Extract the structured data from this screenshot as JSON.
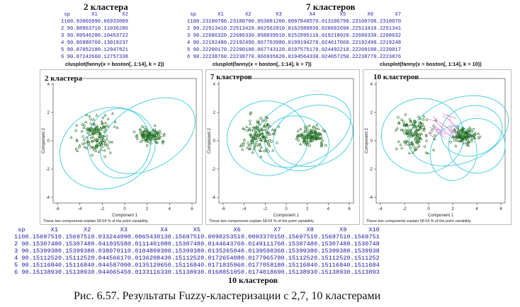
{
  "top_left": {
    "heading": "2 кластера",
    "columns": [
      "",
      "sp",
      "X1",
      "X2"
    ],
    "rows": [
      [
        "1",
        "10",
        "0.9306699",
        "0.06933009"
      ],
      [
        "2",
        "9",
        "0.8896371",
        "0.11036286"
      ],
      [
        "3",
        "9",
        "0.8954628",
        "0.10453722"
      ],
      [
        "4",
        "9",
        "0.8698076",
        "0.13019237"
      ],
      [
        "5",
        "9",
        "0.8705218",
        "0.12947821"
      ],
      [
        "6",
        "9",
        "0.8724266",
        "0.12757338"
      ]
    ],
    "command": "clusplot(fanny(x = boston[, 1:14], k = 2))"
  },
  "top_right": {
    "heading": "7 кластеров",
    "columns": [
      "",
      "sp",
      "X1",
      "X2",
      "X3",
      "X4",
      "X5",
      "X6",
      "X7"
    ],
    "rows": [
      [
        "1",
        "10",
        "0.2310070",
        "0.2310070",
        "0.05308120",
        "0.009784057",
        "0.01310679",
        "0.2310070",
        "0.2310070"
      ],
      [
        "2",
        "9",
        "0.2251341",
        "0.2251342",
        "0.06256281",
        "0.016298083",
        "0.02060269",
        "0.2251341",
        "0.2251341"
      ],
      [
        "3",
        "9",
        "0.2268632",
        "0.2268633",
        "0.05803951",
        "0.015289511",
        "0.01921802",
        "0.2268633",
        "0.2268632"
      ],
      [
        "4",
        "9",
        "0.2219248",
        "0.2219249",
        "0.06776398",
        "0.019919427",
        "0.02461706",
        "0.2219249",
        "0.2219248"
      ],
      [
        "5",
        "9",
        "0.2220017",
        "0.2220019",
        "0.06774312",
        "0.019757517",
        "0.02449221",
        "0.2220018",
        "0.2220017"
      ],
      [
        "6",
        "9",
        "0.2223876",
        "0.2223877",
        "0.06693562",
        "0.019456433",
        "0.02405725",
        "0.2223877",
        "0.2223876"
      ]
    ],
    "command": "clusplot(fanny(x = boston[, 1:14], k = 7))"
  },
  "command_k10": "clusplot(fanny(x = boston[, 1:14], k = 10))",
  "plots": [
    {
      "title": "2 кластера",
      "y_label": "Component 2",
      "x_label": "Component 1",
      "note": "These two components explain 58.54 % of the point variability.",
      "x_ticks": [
        "-6",
        "-4",
        "-2",
        "0",
        "2",
        "4",
        "6"
      ],
      "y_ticks": [
        "-4",
        "-2",
        "0",
        "2",
        "4"
      ]
    },
    {
      "title": "7 кластеров",
      "y_label": "Component 2",
      "x_label": "Component 1",
      "note": "These two components explain 58.54 % of the point variability.",
      "x_ticks": [
        "-6",
        "-4",
        "-2",
        "0",
        "2",
        "4",
        "6"
      ],
      "y_ticks": [
        "-4",
        "-2",
        "0",
        "2",
        "4"
      ]
    },
    {
      "title": "10 кластеров",
      "y_label": "Component 2",
      "x_label": "Component 1",
      "note": "These two components explain 58.54 % of the point variability.",
      "x_ticks": [
        "-4",
        "-2",
        "0",
        "2",
        "4",
        "6"
      ],
      "y_ticks": [
        "-4",
        "-2",
        "0",
        "2",
        "4"
      ]
    }
  ],
  "bottom": {
    "columns": [
      "",
      "sp",
      "X1",
      "X2",
      "X3",
      "X4",
      "X5",
      "X6",
      "X7",
      "X8",
      "X9",
      "X10"
    ],
    "rows": [
      [
        "1",
        "10",
        "0.1569751",
        "0.1569751",
        "0.03324409",
        "0.006543013",
        "0.1569751",
        "0.009025351",
        "0.009337015",
        "0.1569751",
        "0.1569751",
        "0.1569751"
      ],
      [
        "2",
        "9",
        "0.1530748",
        "0.1530748",
        "0.04103558",
        "0.011140108",
        "0.1530748",
        "0.014464376",
        "0.014911176",
        "0.1530748",
        "0.1530748",
        "0.1530748"
      ],
      [
        "3",
        "9",
        "0.1539938",
        "0.1539938",
        "0.03807011",
        "0.010480930",
        "0.1539938",
        "0.013526504",
        "0.013959836",
        "0.1539938",
        "0.1539938",
        "0.1539938"
      ],
      [
        "4",
        "9",
        "0.1511252",
        "0.1511252",
        "0.04456617",
        "0.013620843",
        "0.1511252",
        "0.017265408",
        "0.017796578",
        "0.1511252",
        "0.1511252",
        "0.1511252"
      ],
      [
        "5",
        "9",
        "0.1511684",
        "0.1511684",
        "0.04458700",
        "0.013512965",
        "0.1511684",
        "0.017183596",
        "0.017705818",
        "0.1511684",
        "0.1511684",
        "0.1511684"
      ],
      [
        "6",
        "9",
        "0.1513893",
        "0.1513893",
        "0.04406545",
        "0.013311633",
        "0.1513893",
        "0.016885105",
        "0.017401869",
        "0.1513893",
        "0.1513893",
        "0.1513893"
      ]
    ],
    "heading": "10 кластеров"
  },
  "figure_caption": "Рис. 6.57. Результаты  Fuzzy-кластеризации с 2,7, 10 кластерами",
  "colors": {
    "table_text": "#1a1aa0",
    "points": "#1f6b1f",
    "ellipses": "#4dd0dd",
    "links_k10": "#d58cd5"
  }
}
